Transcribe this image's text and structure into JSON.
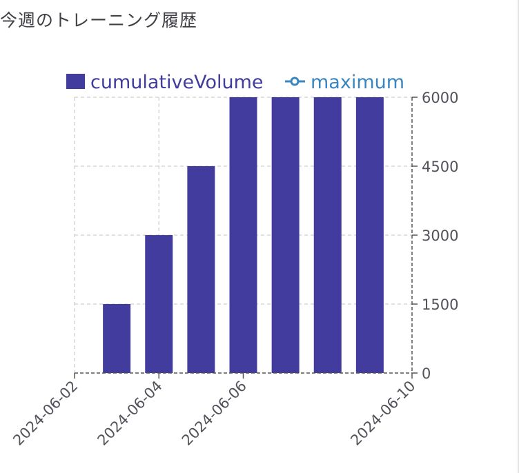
{
  "page": {
    "title": "今週のトレーニング履歴"
  },
  "colors": {
    "bar": "#413c9e",
    "maximum": "#3a86c1",
    "grid": "#cfcfcf",
    "axis": "#555555"
  },
  "chart_data": {
    "type": "bar",
    "title": "",
    "xlabel": "",
    "ylabel": "",
    "x_axis_type": "date",
    "xlim": [
      "2024-06-02",
      "2024-06-10"
    ],
    "x_ticks": [
      "2024-06-02",
      "2024-06-04",
      "2024-06-06",
      "2024-06-10"
    ],
    "ylim": [
      0,
      6000
    ],
    "y_ticks": [
      0,
      1500,
      3000,
      4500,
      6000
    ],
    "y_axis_position": "right",
    "grid": true,
    "legend_position": "top",
    "series": [
      {
        "name": "cumulativeVolume",
        "type": "bar",
        "x": [
          "2024-06-03",
          "2024-06-04",
          "2024-06-05",
          "2024-06-06",
          "2024-06-07",
          "2024-06-08",
          "2024-06-09"
        ],
        "values": [
          1500,
          3000,
          4500,
          6000,
          6000,
          6000,
          6000
        ]
      },
      {
        "name": "maximum",
        "type": "line",
        "x": [],
        "values": []
      }
    ]
  }
}
